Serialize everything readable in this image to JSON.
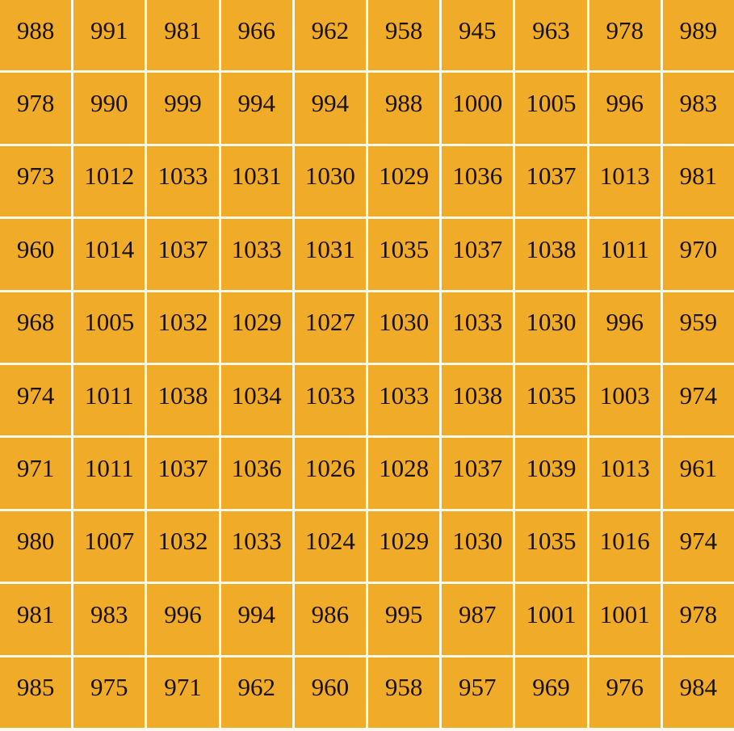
{
  "chart_data": {
    "type": "heatmap",
    "title": "",
    "rows": 10,
    "cols": 10,
    "values": [
      [
        988,
        991,
        981,
        966,
        962,
        958,
        945,
        963,
        978,
        989
      ],
      [
        978,
        990,
        999,
        994,
        994,
        988,
        1000,
        1005,
        996,
        983
      ],
      [
        973,
        1012,
        1033,
        1031,
        1030,
        1029,
        1036,
        1037,
        1013,
        981
      ],
      [
        960,
        1014,
        1037,
        1033,
        1031,
        1035,
        1037,
        1038,
        1011,
        970
      ],
      [
        968,
        1005,
        1032,
        1029,
        1027,
        1030,
        1033,
        1030,
        996,
        959
      ],
      [
        974,
        1011,
        1038,
        1034,
        1033,
        1033,
        1038,
        1035,
        1003,
        974
      ],
      [
        971,
        1011,
        1037,
        1036,
        1026,
        1028,
        1037,
        1039,
        1013,
        961
      ],
      [
        980,
        1007,
        1032,
        1033,
        1024,
        1029,
        1030,
        1035,
        1016,
        974
      ],
      [
        981,
        983,
        996,
        994,
        986,
        995,
        987,
        1001,
        1001,
        978
      ],
      [
        985,
        975,
        971,
        962,
        960,
        958,
        957,
        969,
        976,
        984
      ]
    ],
    "value_min": 945,
    "value_max": 1039,
    "grid_on": true,
    "legend": "none",
    "axis_labels": "none"
  },
  "colors": {
    "cell_background": "#f0ac29",
    "gridline": "#fcf8ea",
    "text": "#1a1208"
  }
}
